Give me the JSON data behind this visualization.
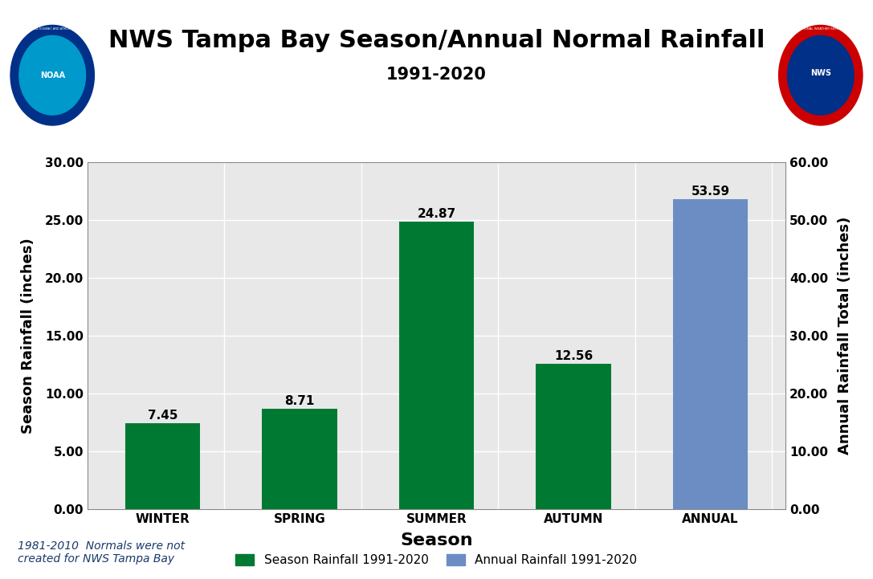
{
  "title": "NWS Tampa Bay Season/Annual Normal Rainfall",
  "subtitle": "1991-2020",
  "categories": [
    "WINTER",
    "SPRING",
    "SUMMER",
    "AUTUMN",
    "ANNUAL"
  ],
  "season_values": [
    7.45,
    8.71,
    24.87,
    12.56,
    null
  ],
  "annual_value": 53.59,
  "season_color": "#007A33",
  "annual_color": "#6B8DC4",
  "left_ylabel": "Season Rainfall (inches)",
  "right_ylabel": "Annual Rainfall Total (inches)",
  "xlabel": "Season",
  "left_ylim": [
    0,
    30
  ],
  "right_ylim": [
    0,
    60
  ],
  "left_yticks": [
    0,
    5,
    10,
    15,
    20,
    25,
    30
  ],
  "right_yticks": [
    0,
    10,
    20,
    30,
    40,
    50,
    60
  ],
  "left_ytick_labels": [
    "0.00",
    "5.00",
    "10.00",
    "15.00",
    "20.00",
    "25.00",
    "30.00"
  ],
  "right_ytick_labels": [
    "0.00",
    "10.00",
    "20.00",
    "30.00",
    "40.00",
    "50.00",
    "60.00"
  ],
  "footnote": "1981-2010  Normals were not\ncreated for NWS Tampa Bay",
  "legend_season_label": "Season Rainfall 1991-2020",
  "legend_annual_label": "Annual Rainfall 1991-2020",
  "bar_labels": [
    "7.45",
    "8.71",
    "24.87",
    "12.56",
    "53.59"
  ],
  "plot_bg_color": "#E8E8E8",
  "grid_color": "#FFFFFF",
  "grid_alpha": 1.0,
  "title_fontsize": 22,
  "subtitle_fontsize": 15,
  "axis_label_fontsize": 13,
  "tick_fontsize": 11,
  "bar_label_fontsize": 11,
  "legend_fontsize": 11,
  "footnote_fontsize": 10,
  "bar_width": 0.55
}
